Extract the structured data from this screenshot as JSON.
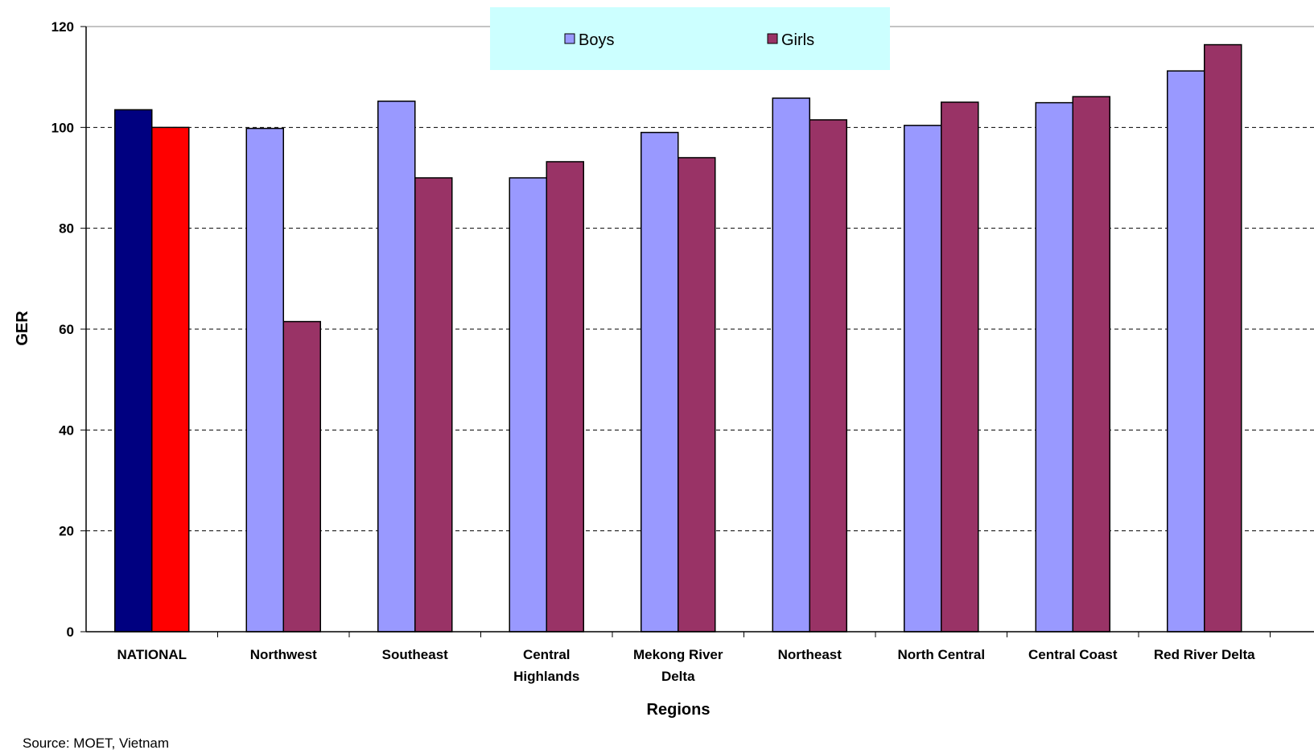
{
  "chart_data": {
    "type": "bar",
    "title": "",
    "xlabel": "Regions",
    "ylabel": "GER",
    "ylim": [
      0,
      120
    ],
    "yticks": [
      0,
      20,
      40,
      60,
      80,
      100,
      120
    ],
    "grid": "dashed horizontal",
    "legend_position": "top-center",
    "categories": [
      [
        "NATIONAL"
      ],
      [
        "Northwest"
      ],
      [
        "Southeast"
      ],
      [
        "Central",
        "Highlands"
      ],
      [
        "Mekong River",
        "Delta"
      ],
      [
        "Northeast"
      ],
      [
        "North Central"
      ],
      [
        "Central Coast"
      ],
      [
        "Red River Delta"
      ]
    ],
    "series": [
      {
        "name": "Boys",
        "color": "#9999FF",
        "values": [
          103.5,
          99.8,
          105.2,
          90.0,
          99.0,
          105.8,
          100.4,
          104.9,
          111.2
        ]
      },
      {
        "name": "Girls",
        "color": "#993366",
        "values": [
          100.0,
          61.5,
          90.0,
          93.2,
          94.0,
          101.5,
          105.0,
          106.1,
          116.4
        ]
      }
    ],
    "highlight": {
      "category_index": 0,
      "colors": [
        "#000080",
        "#FF0000"
      ]
    },
    "legend_bg": "#CCFFFF",
    "source_note": "Source: MOET, Vietnam"
  }
}
